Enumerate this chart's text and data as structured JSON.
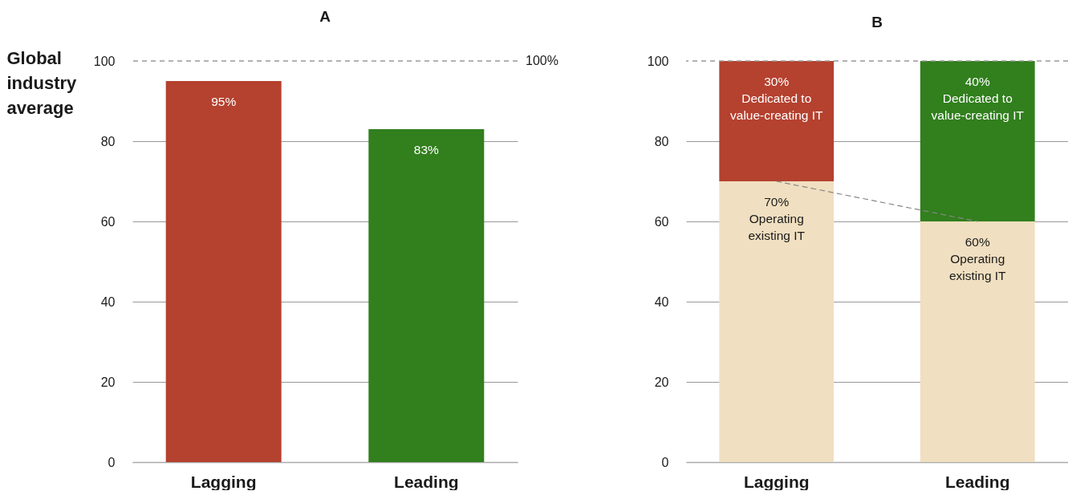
{
  "chart_data": [
    {
      "type": "bar",
      "title": "A",
      "ylabel": "Global industry average",
      "categories": [
        "Lagging",
        "Leading"
      ],
      "values": [
        95,
        83
      ],
      "colors": [
        "#b5412f",
        "#317f1d"
      ],
      "value_labels": [
        "95%",
        "83%"
      ],
      "ylim": [
        0,
        100
      ],
      "yticks": [
        0,
        20,
        40,
        60,
        80,
        100
      ],
      "grid": "y",
      "ref_lines": [
        {
          "axis": "y",
          "value": 100,
          "label": "100%",
          "line_style": "dashed"
        }
      ]
    },
    {
      "type": "bar",
      "title": "B",
      "stacked": true,
      "categories": [
        "Lagging",
        "Leading"
      ],
      "ylim": [
        0,
        100
      ],
      "yticks": [
        0,
        20,
        40,
        60,
        80,
        100
      ],
      "grid": "y",
      "series": [
        {
          "color": "#f0dfc0",
          "values": [
            70,
            60
          ],
          "value_labels": [
            "70%\nOperating\nexisting IT",
            "60%\nOperating\nexisting IT"
          ]
        },
        {
          "colors": [
            "#b5412f",
            "#317f1d"
          ],
          "values": [
            30,
            40
          ],
          "value_labels": [
            "30%\nDedicated to\nvalue-creating IT",
            "40%\nDedicated to\nvalue-creating IT"
          ]
        },
        {
          "type": "line",
          "values": [
            70,
            60
          ],
          "line_style": "dashed",
          "color": "#888888"
        }
      ],
      "ref_lines": [
        {
          "axis": "y",
          "value": 100,
          "line_style": "dashed"
        }
      ]
    }
  ]
}
